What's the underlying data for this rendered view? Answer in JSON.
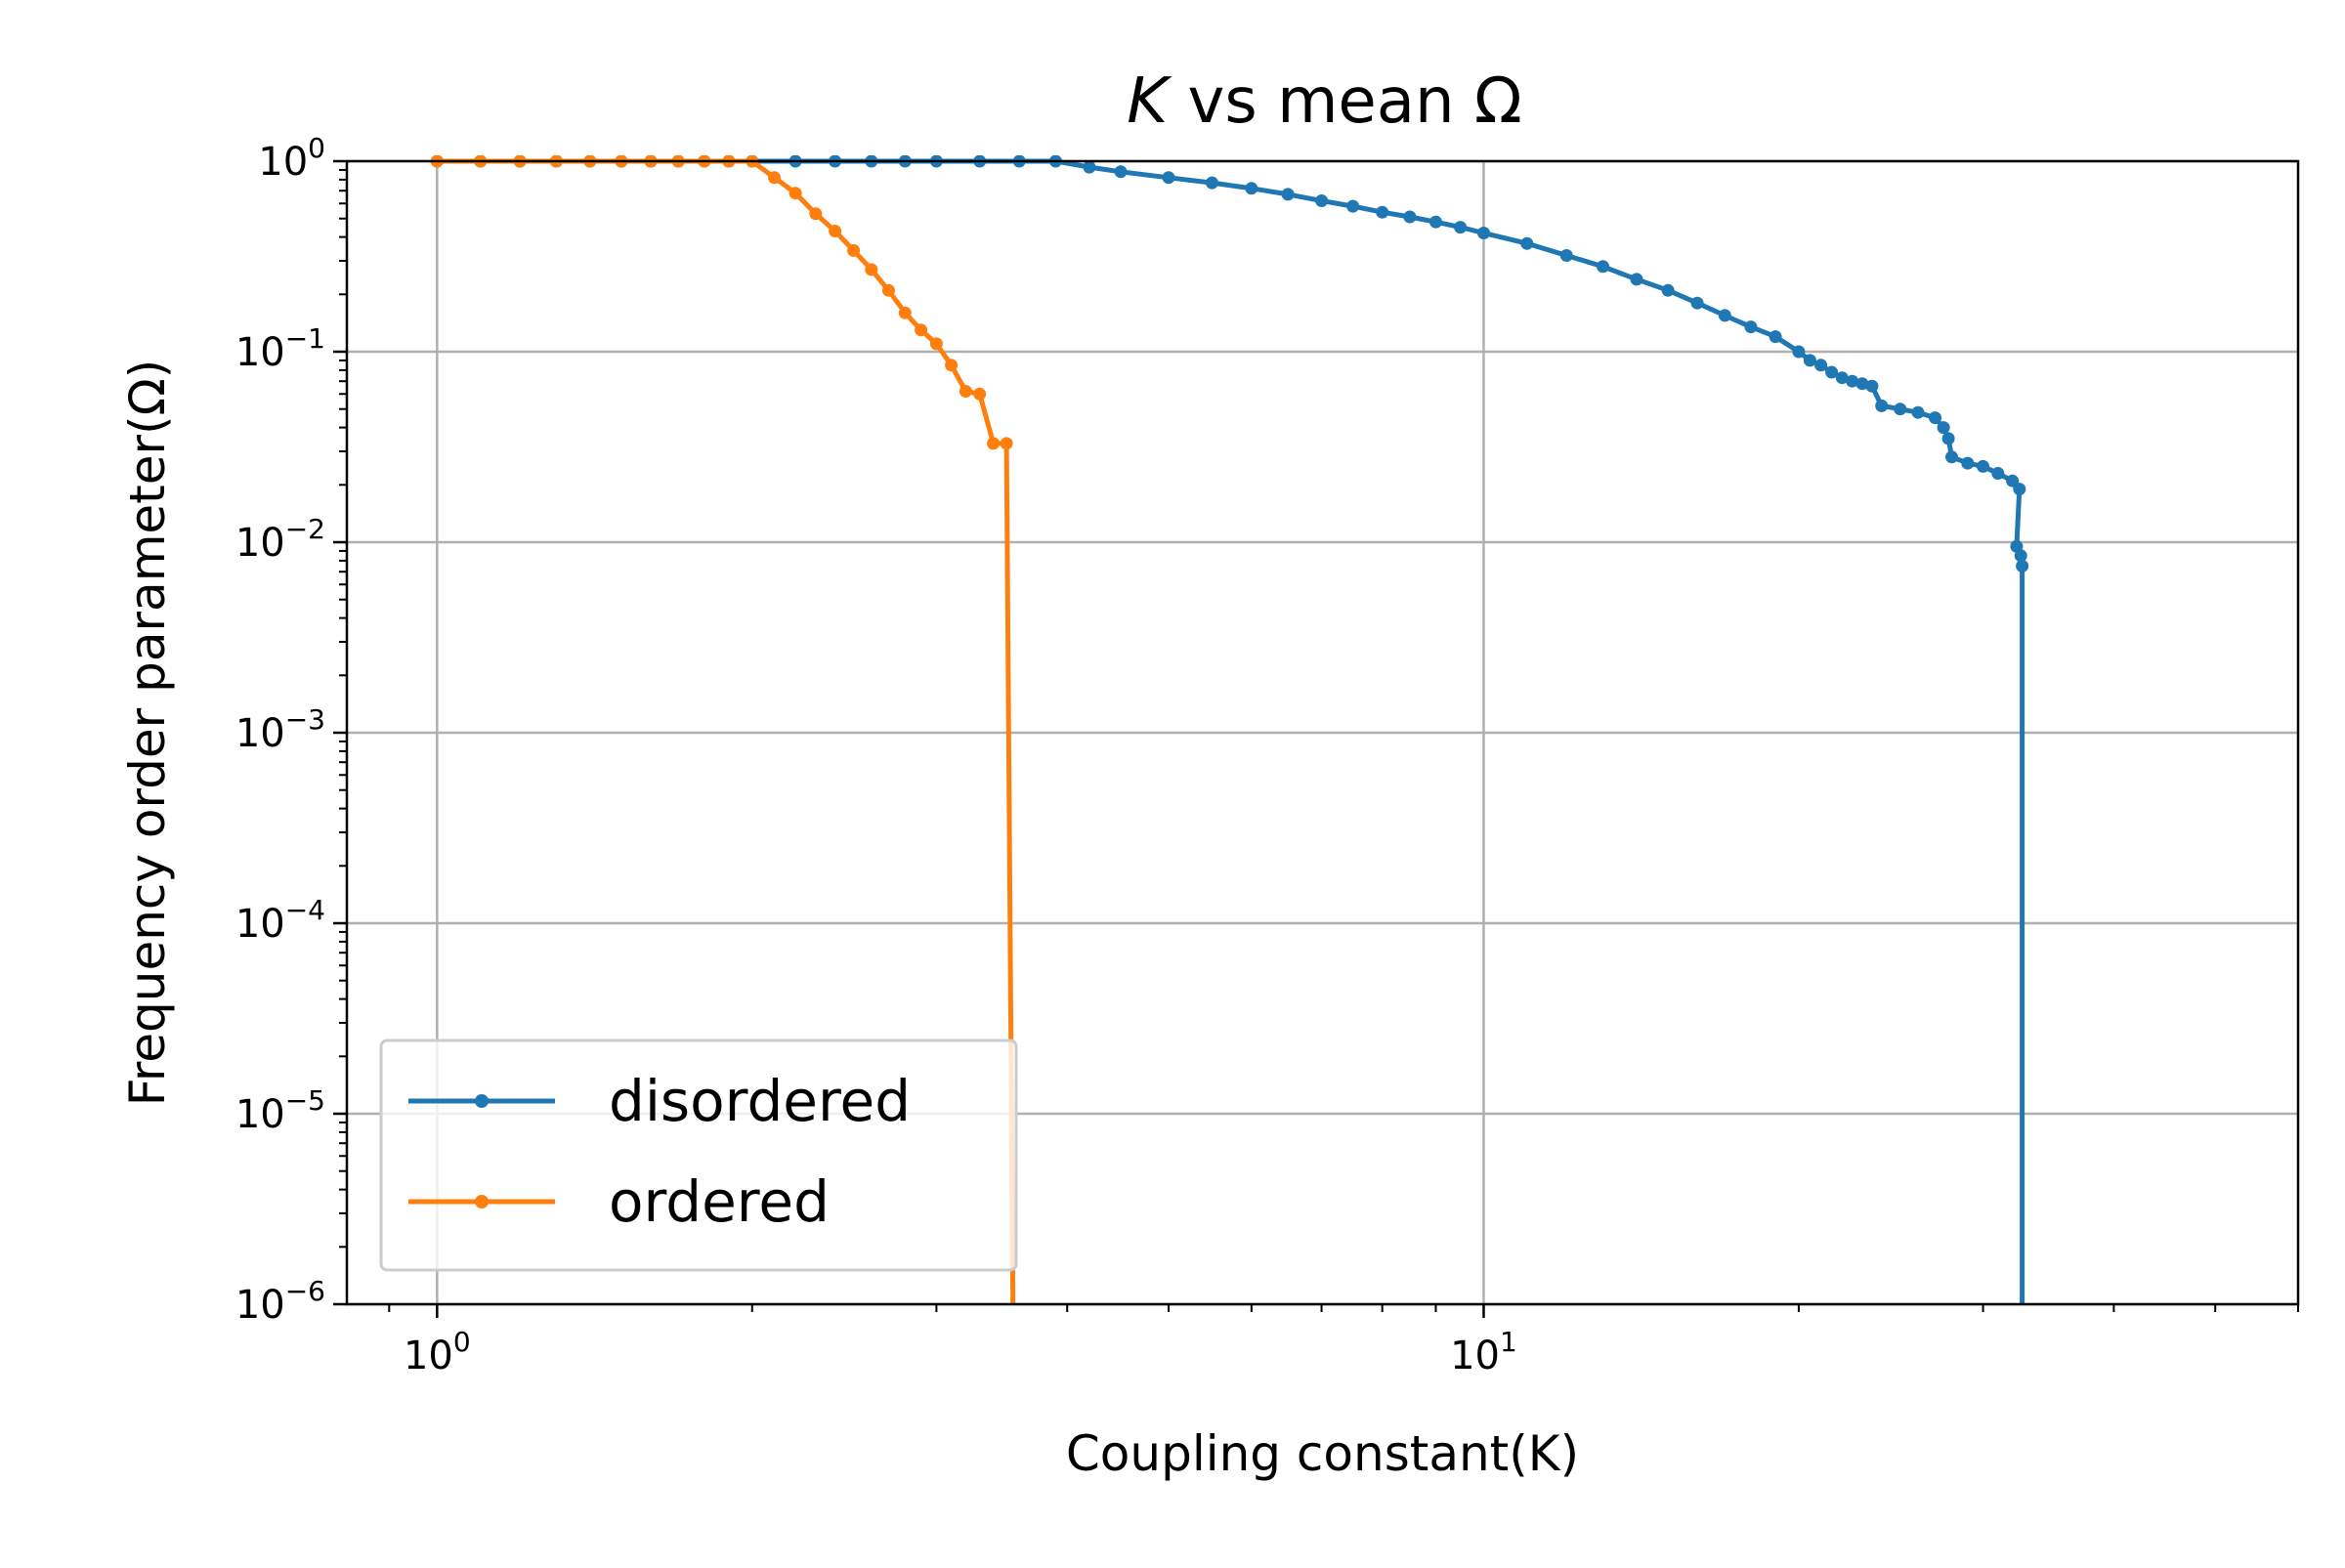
{
  "chart_data": {
    "type": "line",
    "title_italic": "K",
    "title_rest": " vs mean Ω",
    "xlabel": "Coupling constant(K)",
    "ylabel": "Frequency order parameter(Ω)",
    "x_scale": "log",
    "y_scale": "log",
    "xlim": [
      0.82,
      60
    ],
    "ylim": [
      1e-06,
      1
    ],
    "grid": true,
    "legend_position": "lower-left",
    "x_ticks": [
      {
        "value": 1,
        "base": "10",
        "exp": "0"
      },
      {
        "value": 10,
        "base": "10",
        "exp": "1"
      }
    ],
    "y_ticks": [
      {
        "value": 1,
        "base": "10",
        "exp": "0"
      },
      {
        "value": 0.1,
        "base": "10",
        "exp": "−1"
      },
      {
        "value": 0.01,
        "base": "10",
        "exp": "−2"
      },
      {
        "value": 0.001,
        "base": "10",
        "exp": "−3"
      },
      {
        "value": 0.0001,
        "base": "10",
        "exp": "−4"
      },
      {
        "value": 1e-05,
        "base": "10",
        "exp": "−5"
      },
      {
        "value": 1e-06,
        "base": "10",
        "exp": "−6"
      }
    ],
    "series": [
      {
        "name": "disordered",
        "color": "#1f77b4",
        "points": [
          [
            1.0,
            1.0
          ],
          [
            1.1,
            1.0
          ],
          [
            1.2,
            1.0
          ],
          [
            1.3,
            1.0
          ],
          [
            1.4,
            1.0
          ],
          [
            1.5,
            1.0
          ],
          [
            1.6,
            1.0
          ],
          [
            1.7,
            1.0
          ],
          [
            1.8,
            1.0
          ],
          [
            1.9,
            1.0
          ],
          [
            2.0,
            1.0
          ],
          [
            2.2,
            1.0
          ],
          [
            2.4,
            1.0
          ],
          [
            2.6,
            1.0
          ],
          [
            2.8,
            1.0
          ],
          [
            3.0,
            1.0
          ],
          [
            3.3,
            1.0
          ],
          [
            3.6,
            1.0
          ],
          [
            3.9,
            1.0
          ],
          [
            4.2,
            0.93
          ],
          [
            4.5,
            0.88
          ],
          [
            5.0,
            0.82
          ],
          [
            5.5,
            0.77
          ],
          [
            6.0,
            0.72
          ],
          [
            6.5,
            0.67
          ],
          [
            7.0,
            0.62
          ],
          [
            7.5,
            0.58
          ],
          [
            8.0,
            0.54
          ],
          [
            8.5,
            0.51
          ],
          [
            9.0,
            0.48
          ],
          [
            9.5,
            0.45
          ],
          [
            10.0,
            0.42
          ],
          [
            11.0,
            0.37
          ],
          [
            12.0,
            0.32
          ],
          [
            13.0,
            0.28
          ],
          [
            14.0,
            0.24
          ],
          [
            15.0,
            0.21
          ],
          [
            16.0,
            0.18
          ],
          [
            17.0,
            0.155
          ],
          [
            18.0,
            0.135
          ],
          [
            19.0,
            0.12
          ],
          [
            20.0,
            0.1
          ],
          [
            20.5,
            0.09
          ],
          [
            21.0,
            0.085
          ],
          [
            21.5,
            0.078
          ],
          [
            22.0,
            0.073
          ],
          [
            22.5,
            0.07
          ],
          [
            23.0,
            0.068
          ],
          [
            23.5,
            0.066
          ],
          [
            24.0,
            0.052
          ],
          [
            25.0,
            0.05
          ],
          [
            26.0,
            0.048
          ],
          [
            27.0,
            0.045
          ],
          [
            27.5,
            0.04
          ],
          [
            27.8,
            0.035
          ],
          [
            28.0,
            0.028
          ],
          [
            29.0,
            0.026
          ],
          [
            30.0,
            0.025
          ],
          [
            31.0,
            0.023
          ],
          [
            32.0,
            0.021
          ],
          [
            32.5,
            0.019
          ],
          [
            32.3,
            0.0095
          ],
          [
            32.6,
            0.0085
          ],
          [
            32.7,
            0.0075
          ],
          [
            32.7,
            1e-06
          ]
        ]
      },
      {
        "name": "ordered",
        "color": "#ff7f0e",
        "points": [
          [
            1.0,
            1.0
          ],
          [
            1.1,
            1.0
          ],
          [
            1.2,
            1.0
          ],
          [
            1.3,
            1.0
          ],
          [
            1.4,
            1.0
          ],
          [
            1.5,
            1.0
          ],
          [
            1.6,
            1.0
          ],
          [
            1.7,
            1.0
          ],
          [
            1.8,
            1.0
          ],
          [
            1.9,
            1.0
          ],
          [
            2.0,
            1.0
          ],
          [
            2.1,
            0.82
          ],
          [
            2.2,
            0.68
          ],
          [
            2.3,
            0.53
          ],
          [
            2.4,
            0.43
          ],
          [
            2.5,
            0.34
          ],
          [
            2.6,
            0.27
          ],
          [
            2.7,
            0.21
          ],
          [
            2.8,
            0.16
          ],
          [
            2.9,
            0.13
          ],
          [
            3.0,
            0.11
          ],
          [
            3.1,
            0.085
          ],
          [
            3.2,
            0.062
          ],
          [
            3.3,
            0.06
          ],
          [
            3.4,
            0.033
          ],
          [
            3.5,
            0.033
          ],
          [
            3.55,
            1e-06
          ]
        ]
      }
    ]
  }
}
